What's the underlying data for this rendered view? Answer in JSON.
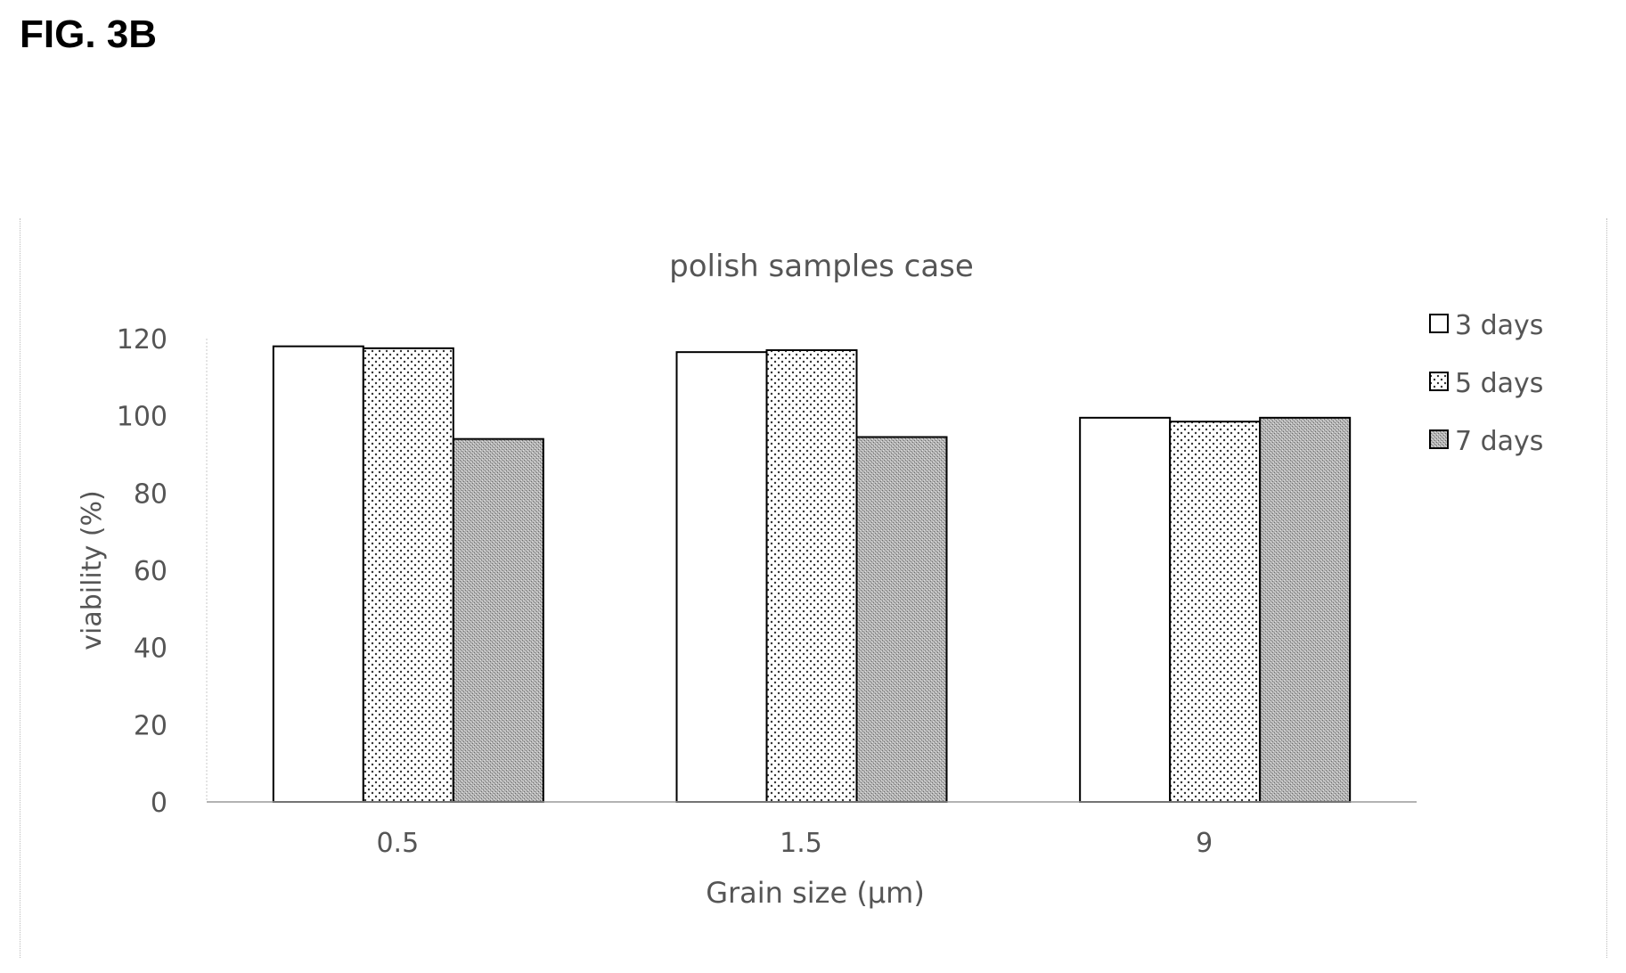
{
  "figure_label": "FIG. 3B",
  "chart_data": {
    "type": "bar",
    "title": "polish samples case",
    "xlabel": "Grain size (µm)",
    "ylabel": "viability (%)",
    "categories": [
      "0.5",
      "1.5",
      "9"
    ],
    "ylim": [
      0,
      120
    ],
    "yticks": [
      "0",
      "20",
      "40",
      "60",
      "80",
      "100",
      "120"
    ],
    "grid": false,
    "legend_position": "right",
    "series": [
      {
        "name": "3 days",
        "pattern": "white",
        "values": [
          118,
          116.5,
          99.5
        ]
      },
      {
        "name": "5 days",
        "pattern": "dotted",
        "values": [
          117.5,
          117,
          98.5
        ]
      },
      {
        "name": "7 days",
        "pattern": "gray-stipple",
        "values": [
          94,
          94.5,
          99.5
        ]
      }
    ]
  }
}
